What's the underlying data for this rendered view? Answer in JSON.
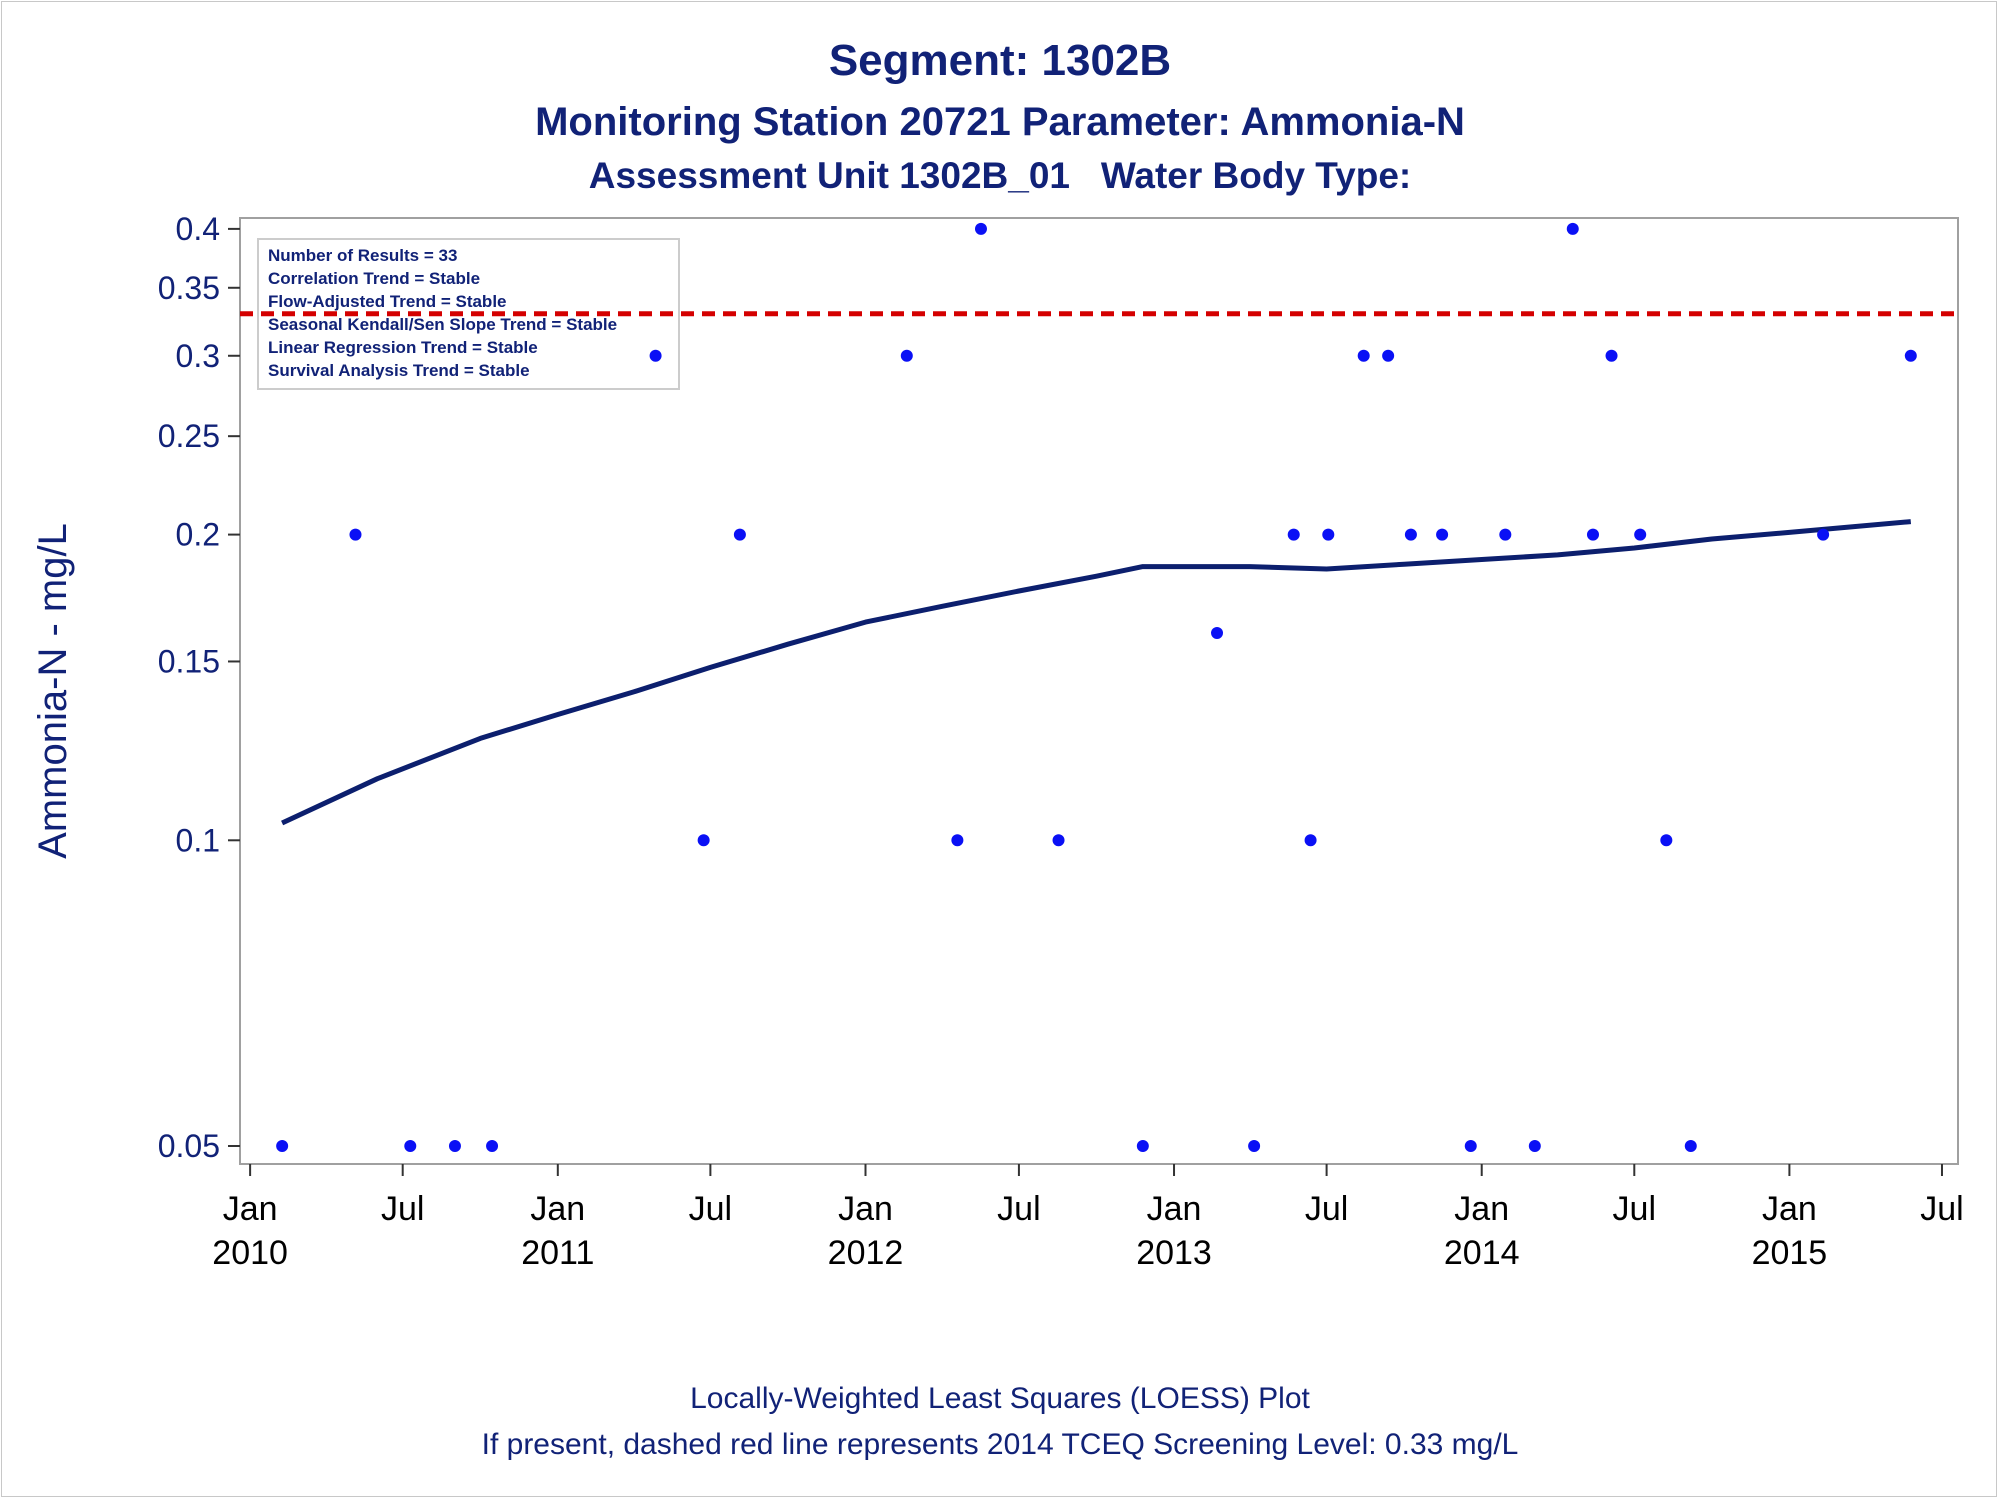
{
  "chart_data": {
    "type": "scatter",
    "title": "Segment: 1302B",
    "subtitle_1": "Monitoring Station 20721 Parameter: Ammonia-N",
    "subtitle_2": "Assessment Unit 1302B_01   Water Body Type:",
    "ylabel": "Ammonia-N - mg/L",
    "xlabel": "",
    "y_scale": "log",
    "ylim": [
      0.048,
      0.41
    ],
    "xlim": [
      "2009-12-20",
      "2015-07-20"
    ],
    "y_ticks": [
      {
        "value": 0.05,
        "label": "0.05"
      },
      {
        "value": 0.1,
        "label": "0.1"
      },
      {
        "value": 0.15,
        "label": "0.15"
      },
      {
        "value": 0.2,
        "label": "0.2"
      },
      {
        "value": 0.25,
        "label": "0.25"
      },
      {
        "value": 0.3,
        "label": "0.3"
      },
      {
        "value": 0.35,
        "label": "0.35"
      },
      {
        "value": 0.4,
        "label": "0.4"
      }
    ],
    "x_ticks": [
      {
        "date": "2010-01-01",
        "label": "Jan",
        "year": "2010"
      },
      {
        "date": "2010-07-01",
        "label": "Jul",
        "year": ""
      },
      {
        "date": "2011-01-01",
        "label": "Jan",
        "year": "2011"
      },
      {
        "date": "2011-07-01",
        "label": "Jul",
        "year": ""
      },
      {
        "date": "2012-01-01",
        "label": "Jan",
        "year": "2012"
      },
      {
        "date": "2012-07-01",
        "label": "Jul",
        "year": ""
      },
      {
        "date": "2013-01-01",
        "label": "Jan",
        "year": "2013"
      },
      {
        "date": "2013-07-01",
        "label": "Jul",
        "year": ""
      },
      {
        "date": "2014-01-01",
        "label": "Jan",
        "year": "2014"
      },
      {
        "date": "2014-07-01",
        "label": "Jul",
        "year": ""
      },
      {
        "date": "2015-01-01",
        "label": "Jan",
        "year": "2015"
      },
      {
        "date": "2015-07-01",
        "label": "Jul",
        "year": ""
      }
    ],
    "series": [
      {
        "type": "scatter",
        "color": "#0a10f5",
        "points": [
          {
            "x": "2010-02-08",
            "y": 0.05
          },
          {
            "x": "2010-05-06",
            "y": 0.2
          },
          {
            "x": "2010-07-10",
            "y": 0.05
          },
          {
            "x": "2010-09-01",
            "y": 0.05
          },
          {
            "x": "2010-10-15",
            "y": 0.05
          },
          {
            "x": "2011-04-27",
            "y": 0.3
          },
          {
            "x": "2011-06-23",
            "y": 0.1
          },
          {
            "x": "2011-08-05",
            "y": 0.2
          },
          {
            "x": "2012-02-19",
            "y": 0.3
          },
          {
            "x": "2012-04-19",
            "y": 0.1
          },
          {
            "x": "2012-05-17",
            "y": 0.4
          },
          {
            "x": "2012-08-17",
            "y": 0.1
          },
          {
            "x": "2012-11-25",
            "y": 0.05
          },
          {
            "x": "2013-02-21",
            "y": 0.16
          },
          {
            "x": "2013-04-06",
            "y": 0.05
          },
          {
            "x": "2013-05-23",
            "y": 0.2
          },
          {
            "x": "2013-06-12",
            "y": 0.1
          },
          {
            "x": "2013-07-03",
            "y": 0.2
          },
          {
            "x": "2013-08-14",
            "y": 0.3
          },
          {
            "x": "2013-09-12",
            "y": 0.3
          },
          {
            "x": "2013-10-09",
            "y": 0.2
          },
          {
            "x": "2013-11-15",
            "y": 0.2
          },
          {
            "x": "2013-12-19",
            "y": 0.05
          },
          {
            "x": "2014-01-29",
            "y": 0.2
          },
          {
            "x": "2014-03-05",
            "y": 0.05
          },
          {
            "x": "2014-04-19",
            "y": 0.4
          },
          {
            "x": "2014-05-13",
            "y": 0.2
          },
          {
            "x": "2014-06-04",
            "y": 0.3
          },
          {
            "x": "2014-07-08",
            "y": 0.2
          },
          {
            "x": "2014-08-08",
            "y": 0.1
          },
          {
            "x": "2014-09-06",
            "y": 0.05
          },
          {
            "x": "2015-02-10",
            "y": 0.2
          },
          {
            "x": "2015-05-25",
            "y": 0.3
          }
        ]
      },
      {
        "type": "line",
        "color": "#0c1f6e",
        "points": [
          {
            "x": "2010-02-08",
            "y": 0.104
          },
          {
            "x": "2010-06-01",
            "y": 0.115
          },
          {
            "x": "2010-10-01",
            "y": 0.126
          },
          {
            "x": "2011-01-01",
            "y": 0.133
          },
          {
            "x": "2011-04-01",
            "y": 0.14
          },
          {
            "x": "2011-07-01",
            "y": 0.148
          },
          {
            "x": "2011-10-01",
            "y": 0.156
          },
          {
            "x": "2012-01-01",
            "y": 0.164
          },
          {
            "x": "2012-04-01",
            "y": 0.17
          },
          {
            "x": "2012-07-01",
            "y": 0.176
          },
          {
            "x": "2012-10-01",
            "y": 0.182
          },
          {
            "x": "2012-11-25",
            "y": 0.186
          },
          {
            "x": "2013-01-01",
            "y": 0.186
          },
          {
            "x": "2013-04-01",
            "y": 0.186
          },
          {
            "x": "2013-07-01",
            "y": 0.185
          },
          {
            "x": "2013-10-01",
            "y": 0.187
          },
          {
            "x": "2014-01-01",
            "y": 0.189
          },
          {
            "x": "2014-04-01",
            "y": 0.191
          },
          {
            "x": "2014-07-01",
            "y": 0.194
          },
          {
            "x": "2014-10-01",
            "y": 0.198
          },
          {
            "x": "2015-01-01",
            "y": 0.201
          },
          {
            "x": "2015-05-25",
            "y": 0.206
          }
        ]
      }
    ],
    "reference_line": {
      "y": 0.33,
      "color": "#d40000",
      "style": "dashed"
    },
    "inset": {
      "lines": [
        "Number of Results = 33",
        "Correlation Trend = Stable",
        "Flow-Adjusted Trend = Stable",
        "Seasonal Kendall/Sen Slope Trend = Stable",
        "Linear Regression Trend = Stable",
        "Survival Analysis Trend = Stable"
      ],
      "placement": "top-left"
    },
    "footnote_1": "Locally-Weighted Least Squares (LOESS) Plot",
    "footnote_2": "If present, dashed red line represents 2014 TCEQ Screening Level: 0.33 mg/L"
  }
}
